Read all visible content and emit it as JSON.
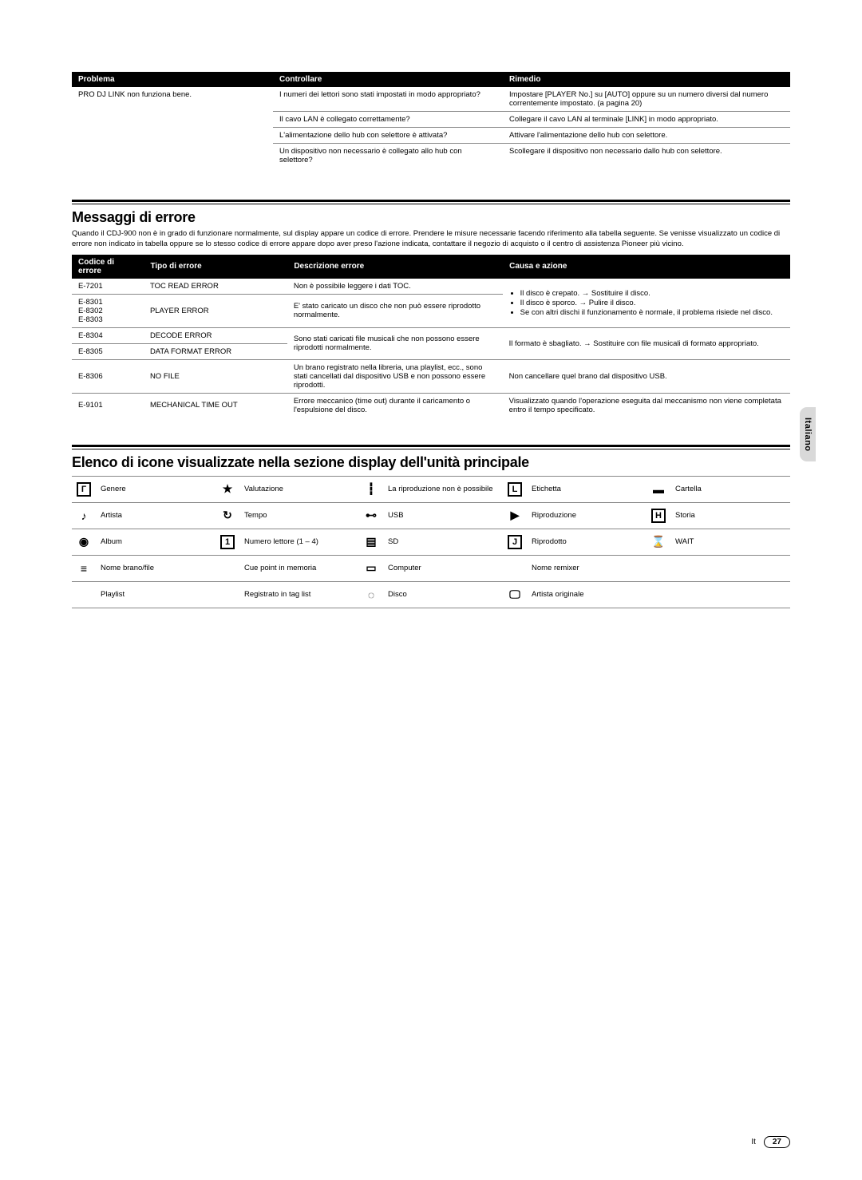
{
  "troubleshoot": {
    "headers": [
      "Problema",
      "Controllare",
      "Rimedio"
    ],
    "problem": "PRO DJ LINK non funziona bene.",
    "rows": [
      {
        "check": "I numeri dei lettori sono stati impostati in modo appropriato?",
        "remedy": "Impostare [PLAYER No.] su [AUTO] oppure su un numero diversi dal numero correntemente impostato. (a pagina 20)"
      },
      {
        "check": "Il cavo LAN è collegato correttamente?",
        "remedy": "Collegare il cavo LAN al terminale [LINK] in modo appropriato."
      },
      {
        "check": "L'alimentazione dello hub con selettore è attivata?",
        "remedy": "Attivare l'alimentazione dello hub con selettore."
      },
      {
        "check": "Un dispositivo non necessario è collegato allo hub con selettore?",
        "remedy": "Scollegare il dispositivo non necessario dallo hub con selettore."
      }
    ]
  },
  "errorSection": {
    "title": "Messaggi di errore",
    "intro": "Quando il CDJ-900 non è in grado di funzionare normalmente, sul display appare un codice di errore. Prendere le misure necessarie facendo riferimento alla tabella seguente. Se venisse visualizzato un codice di errore non indicato in tabella oppure se lo stesso codice di errore appare dopo aver preso l'azione indicata, contattare il negozio di acquisto o il centro di assistenza Pioneer più vicino.",
    "headers": [
      "Codice di errore",
      "Tipo di errore",
      "Descrizione errore",
      "Causa e azione"
    ],
    "cause_bullets": [
      "Il disco è crepato. → Sostituire il disco.",
      "Il disco è sporco. → Pulire il disco.",
      "Se con altri dischi il funzionamento è normale, il problema risiede nel disco."
    ],
    "rows": {
      "e7201": {
        "code": "E-7201",
        "type": "TOC READ ERROR",
        "desc": "Non è possibile leggere i dati TOC."
      },
      "e830x": {
        "code": "E-8301\nE-8302\nE-8303",
        "type": "PLAYER ERROR",
        "desc": "E' stato caricato un disco che non può essere riprodotto normalmente."
      },
      "e8304": {
        "code": "E-8304",
        "type": "DECODE ERROR"
      },
      "e8305": {
        "code": "E-8305",
        "type": "DATA FORMAT ERROR"
      },
      "desc_8304_5": "Sono stati caricati file musicali che non possono essere riprodotti normalmente.",
      "cause_8304_5": "Il formato è sbagliato. → Sostituire con file musicali di formato appropriato.",
      "e8306": {
        "code": "E-8306",
        "type": "NO FILE",
        "desc": "Un brano registrato nella libreria, una playlist, ecc., sono stati cancellati dal dispositivo USB e non possono essere riprodotti.",
        "cause": "Non cancellare quel brano dal dispositivo USB."
      },
      "e9101": {
        "code": "E-9101",
        "type": "MECHANICAL TIME OUT",
        "desc": "Errore meccanico (time out) durante il caricamento o l'espulsione del disco.",
        "cause": "Visualizzato quando l'operazione eseguita dal meccanismo non viene completata entro il tempo specificato."
      }
    }
  },
  "iconSection": {
    "title": "Elenco di icone visualizzate nella sezione display dell'unità principale",
    "rows": [
      [
        {
          "glyph": "Г",
          "label": "Genere",
          "boxed": true
        },
        {
          "glyph": "★",
          "label": "Valutazione"
        },
        {
          "glyph": "┇",
          "label": "La riproduzione non è possibile"
        },
        {
          "glyph": "L",
          "label": "Etichetta",
          "boxed": true
        },
        {
          "glyph": "▬",
          "label": "Cartella"
        }
      ],
      [
        {
          "glyph": "♪",
          "label": "Artista"
        },
        {
          "glyph": "↻",
          "label": "Tempo"
        },
        {
          "glyph": "⊷",
          "label": "USB"
        },
        {
          "glyph": "▶",
          "label": "Riproduzione"
        },
        {
          "glyph": "H",
          "label": "Storia",
          "boxed": true
        }
      ],
      [
        {
          "glyph": "◉",
          "label": "Album"
        },
        {
          "glyph": "1",
          "label": "Numero lettore (1 – 4)",
          "boxed": true
        },
        {
          "glyph": "▤",
          "label": "SD"
        },
        {
          "glyph": "J",
          "label": "Riprodotto",
          "boxed": true
        },
        {
          "glyph": "⌛",
          "label": "WAIT"
        }
      ],
      [
        {
          "glyph": "≡",
          "label": "Nome brano/file"
        },
        {
          "glyph": " ",
          "label": "Cue point in memoria"
        },
        {
          "glyph": "▭",
          "label": "Computer"
        },
        {
          "glyph": " ",
          "label": "Nome remixer"
        },
        {
          "glyph": "",
          "label": ""
        }
      ],
      [
        {
          "glyph": " ",
          "label": "Playlist"
        },
        {
          "glyph": " ",
          "label": "Registrato in tag list"
        },
        {
          "glyph": "◌",
          "label": "Disco"
        },
        {
          "glyph": "🖵",
          "label": "Artista originale"
        },
        {
          "glyph": "",
          "label": ""
        }
      ]
    ]
  },
  "sideTab": "Italiano",
  "footer": {
    "lang": "It",
    "page": "27"
  }
}
